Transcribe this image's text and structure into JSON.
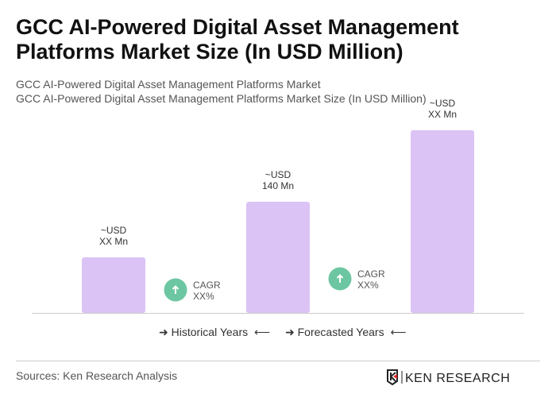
{
  "title": "GCC AI-Powered Digital Asset Management Platforms Market Size (In USD Million)",
  "subtitle1": "GCC AI-Powered Digital Asset Management Platforms Market",
  "subtitle2": "GCC AI-Powered Digital Asset Management Platforms Market Size (In USD Million)",
  "chart_data": {
    "type": "bar",
    "categories": [
      "",
      "",
      ""
    ],
    "values": [
      70,
      140,
      230
    ],
    "data_labels": [
      [
        "~USD",
        "XX Mn"
      ],
      [
        "~USD",
        "140 Mn"
      ],
      [
        "~USD",
        "XX Mn"
      ]
    ],
    "cagr": [
      {
        "label": "CAGR",
        "value": "XX%"
      },
      {
        "label": "CAGR",
        "value": "XX%"
      }
    ],
    "bar_color": "#dcc3f5",
    "cagr_color": "#6cc6a2",
    "grid": false
  },
  "legend": {
    "historical": "Historical Years",
    "forecasted": "Forecasted Years"
  },
  "sources": "Sources: Ken Research Analysis",
  "logo_text": "KEN RESEARCH"
}
